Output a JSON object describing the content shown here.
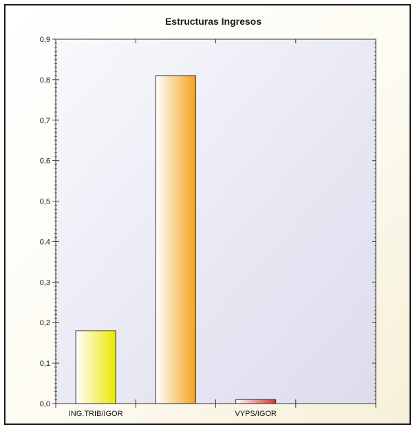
{
  "chart_data": {
    "type": "bar",
    "title": "Estructuras Ingresos",
    "xlabel": "",
    "ylabel": "",
    "ylim": [
      0,
      0.9
    ],
    "yticks": [
      "0,0",
      "0,1",
      "0,2",
      "0,3",
      "0,4",
      "0,5",
      "0,6",
      "0,7",
      "0,8",
      "0,9"
    ],
    "categories": [
      "ING.TRIB/IGOR",
      "",
      "VYPS/IGOR",
      ""
    ],
    "values": [
      0.18,
      0.81,
      0.01,
      0
    ],
    "colors": [
      "#ece800",
      "#f5a21c",
      "#e0302a",
      "#ffffff"
    ],
    "grid": false,
    "legend": "none"
  }
}
